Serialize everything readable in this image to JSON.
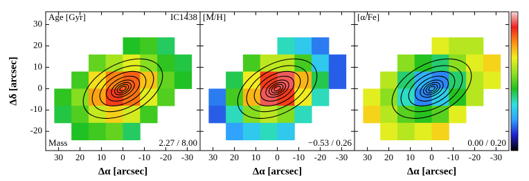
{
  "chart_data": [
    {
      "type": "map",
      "title": "Age [Gyr]",
      "object": "IC1438",
      "note": "Mass",
      "clim": [
        2.27,
        8.0
      ],
      "clim_label": "2.27 / 8.00",
      "xlabel": "Δα [arcsec]",
      "ylabel": "Δδ [arcsec]",
      "xlim": [
        36,
        -36
      ],
      "ylim": [
        -29,
        36
      ],
      "xticks": [
        30,
        20,
        10,
        0,
        -10,
        -20,
        -30
      ],
      "yticks": [
        -20,
        -10,
        0,
        10,
        20,
        30
      ],
      "x": [
        28,
        20,
        12,
        4,
        -4,
        -12,
        -20,
        -28
      ],
      "y": [
        20,
        12,
        4,
        -4,
        -12,
        -20
      ],
      "values": [
        [
          null,
          null,
          null,
          null,
          4.8,
          5.0,
          4.6,
          null
        ],
        [
          null,
          null,
          5.2,
          5.6,
          6.0,
          5.4,
          4.9,
          4.7
        ],
        [
          null,
          5.0,
          6.2,
          6.8,
          7.0,
          6.4,
          5.2,
          4.8
        ],
        [
          4.9,
          5.4,
          6.6,
          7.2,
          6.9,
          6.0,
          5.1,
          null
        ],
        [
          4.7,
          5.1,
          5.8,
          6.3,
          5.9,
          5.0,
          null,
          null
        ],
        [
          null,
          4.8,
          5.0,
          5.2,
          4.6,
          null,
          null,
          null
        ]
      ]
    },
    {
      "type": "map",
      "title": "[M/H]",
      "clim": [
        -0.53,
        0.26
      ],
      "clim_label": "−0.53 / 0.26",
      "xlabel": "Δα [arcsec]",
      "xlim": [
        36,
        -36
      ],
      "ylim": [
        -29,
        36
      ],
      "xticks": [
        30,
        20,
        10,
        0,
        -10,
        -20,
        -30
      ],
      "yticks": [
        -20,
        -10,
        0,
        10,
        20,
        30
      ],
      "x": [
        28,
        20,
        12,
        4,
        -4,
        -12,
        -20,
        -28
      ],
      "y": [
        20,
        12,
        4,
        -4,
        -12,
        -20
      ],
      "values": [
        [
          null,
          null,
          null,
          null,
          -0.25,
          -0.3,
          -0.38,
          null
        ],
        [
          null,
          null,
          -0.15,
          -0.05,
          -0.05,
          -0.15,
          -0.3,
          -0.4
        ],
        [
          null,
          -0.2,
          0.0,
          0.15,
          0.2,
          0.05,
          -0.2,
          -0.4
        ],
        [
          -0.38,
          -0.15,
          0.05,
          0.2,
          0.15,
          0.0,
          -0.25,
          null
        ],
        [
          -0.4,
          -0.25,
          -0.1,
          -0.05,
          -0.1,
          -0.25,
          null,
          null
        ],
        [
          null,
          -0.35,
          -0.3,
          -0.25,
          -0.3,
          null,
          null,
          null
        ]
      ]
    },
    {
      "type": "map",
      "title": "[α/Fe]",
      "clim": [
        0.0,
        0.2
      ],
      "clim_label": "0.00 / 0.20",
      "xlabel": "Δα [arcsec]",
      "xlim": [
        36,
        -36
      ],
      "ylim": [
        -29,
        36
      ],
      "xticks": [
        30,
        20,
        10,
        0,
        -10,
        -20,
        -30
      ],
      "yticks": [
        -20,
        -10,
        0,
        10,
        20,
        30
      ],
      "x": [
        28,
        20,
        12,
        4,
        -4,
        -12,
        -20,
        -28
      ],
      "y": [
        20,
        12,
        4,
        -4,
        -12,
        -20
      ],
      "values": [
        [
          null,
          null,
          null,
          null,
          0.13,
          0.12,
          0.12,
          null
        ],
        [
          null,
          null,
          0.11,
          0.09,
          0.08,
          0.11,
          0.13,
          0.14
        ],
        [
          null,
          0.12,
          0.08,
          0.05,
          0.04,
          0.08,
          0.12,
          0.13
        ],
        [
          0.13,
          0.11,
          0.07,
          0.04,
          0.06,
          0.09,
          0.12,
          null
        ],
        [
          0.14,
          0.12,
          0.1,
          0.09,
          0.1,
          0.13,
          null,
          null
        ],
        [
          null,
          0.13,
          0.12,
          0.13,
          0.14,
          null,
          null,
          null
        ]
      ]
    }
  ],
  "colormap": [
    "#000000",
    "#2020d0",
    "#30a0ff",
    "#30e0e0",
    "#20c020",
    "#90e020",
    "#f0f020",
    "#ff9010",
    "#f02020",
    "#f4d8d8"
  ]
}
